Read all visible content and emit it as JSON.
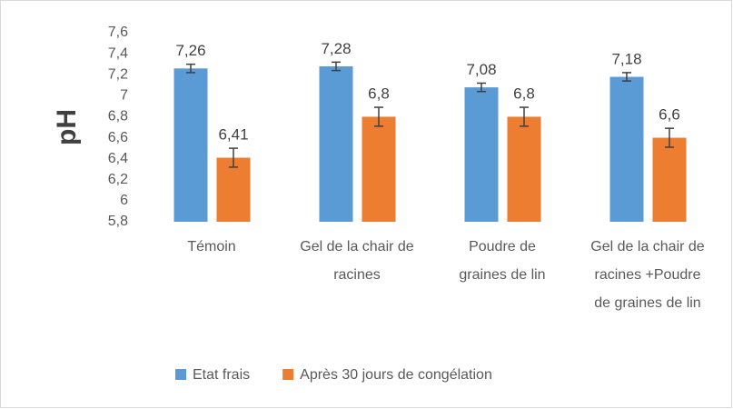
{
  "chart_data": {
    "type": "bar",
    "ylabel": "pH",
    "categories": [
      "Témoin",
      "Gel de la chair de racines",
      "Poudre de graines de lin",
      "Gel de la chair de racines +Poudre de graines de lin"
    ],
    "series": [
      {
        "name": "Etat frais",
        "color": "#5b9bd5",
        "values": [
          7.26,
          7.28,
          7.08,
          7.18
        ],
        "value_labels": [
          "7,26",
          "7,28",
          "7,08",
          "7,18"
        ],
        "errors": [
          0.04,
          0.04,
          0.04,
          0.04
        ]
      },
      {
        "name": "Après 30 jours de congélation",
        "color": "#ed7d31",
        "values": [
          6.41,
          6.8,
          6.8,
          6.6
        ],
        "value_labels": [
          "6,41",
          "6,8",
          "6,8",
          "6,6"
        ],
        "errors": [
          0.09,
          0.09,
          0.09,
          0.09
        ]
      }
    ],
    "ylim": [
      5.8,
      7.6
    ],
    "yticks": [
      {
        "value": 5.8,
        "label": "5,8"
      },
      6,
      {
        "value": 6.2,
        "label": "6,2"
      },
      {
        "value": 6.4,
        "label": "6,4"
      },
      {
        "value": 6.6,
        "label": "6,6"
      },
      {
        "value": 6.8,
        "label": "6,8"
      },
      7,
      {
        "value": 7.2,
        "label": "7,2"
      },
      {
        "value": 7.4,
        "label": "7,4"
      },
      {
        "value": 7.6,
        "label": "7,6"
      }
    ],
    "grid": false,
    "legend": "bottom"
  }
}
